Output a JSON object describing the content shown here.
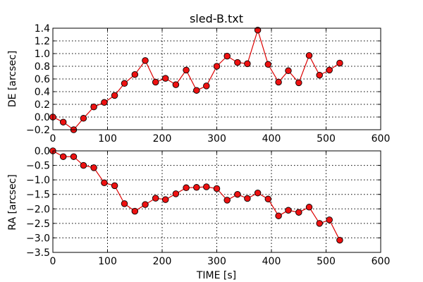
{
  "chart_data": [
    {
      "type": "line",
      "title": "sled-B.txt",
      "xlabel": "",
      "ylabel": "DE [arcsec]",
      "xlim": [
        0,
        600
      ],
      "ylim": [
        -0.2,
        1.4
      ],
      "xticks": [
        "0",
        "100",
        "200",
        "300",
        "400",
        "500",
        "600"
      ],
      "yticks": [
        "−0.2",
        "0.0",
        "0.2",
        "0.4",
        "0.6",
        "0.8",
        "1.0",
        "1.2",
        "1.4"
      ],
      "grid": true,
      "color": "#dd0000",
      "x": [
        0,
        19,
        38,
        56,
        75,
        94,
        113,
        131,
        150,
        169,
        188,
        206,
        225,
        244,
        263,
        281,
        300,
        319,
        338,
        356,
        375,
        394,
        413,
        431,
        450,
        469,
        488,
        506,
        525
      ],
      "values": [
        0.0,
        -0.08,
        -0.2,
        -0.02,
        0.16,
        0.23,
        0.34,
        0.53,
        0.67,
        0.89,
        0.55,
        0.61,
        0.51,
        0.74,
        0.42,
        0.49,
        0.8,
        0.96,
        0.86,
        0.84,
        1.37,
        0.83,
        0.55,
        0.73,
        0.54,
        0.97,
        0.66,
        0.74,
        0.85
      ]
    },
    {
      "type": "line",
      "title": "",
      "xlabel": "TIME [s]",
      "ylabel": "RA [arcsec]",
      "xlim": [
        0,
        600
      ],
      "ylim": [
        -3.5,
        0.0
      ],
      "xticks": [
        "0",
        "100",
        "200",
        "300",
        "400",
        "500",
        "600"
      ],
      "yticks": [
        "−3.5",
        "−3.0",
        "−2.5",
        "−2.0",
        "−1.5",
        "−1.0",
        "−0.5",
        "0.0"
      ],
      "grid": true,
      "color": "#dd0000",
      "x": [
        0,
        19,
        38,
        56,
        75,
        94,
        113,
        131,
        150,
        169,
        188,
        206,
        225,
        244,
        263,
        281,
        300,
        319,
        338,
        356,
        375,
        394,
        413,
        431,
        450,
        469,
        488,
        506,
        525
      ],
      "values": [
        0.0,
        -0.2,
        -0.2,
        -0.5,
        -0.58,
        -1.1,
        -1.2,
        -1.82,
        -2.08,
        -1.85,
        -1.63,
        -1.68,
        -1.48,
        -1.27,
        -1.26,
        -1.24,
        -1.3,
        -1.7,
        -1.5,
        -1.64,
        -1.45,
        -1.66,
        -2.24,
        -2.05,
        -2.12,
        -1.94,
        -2.5,
        -2.38,
        -3.08
      ]
    }
  ]
}
